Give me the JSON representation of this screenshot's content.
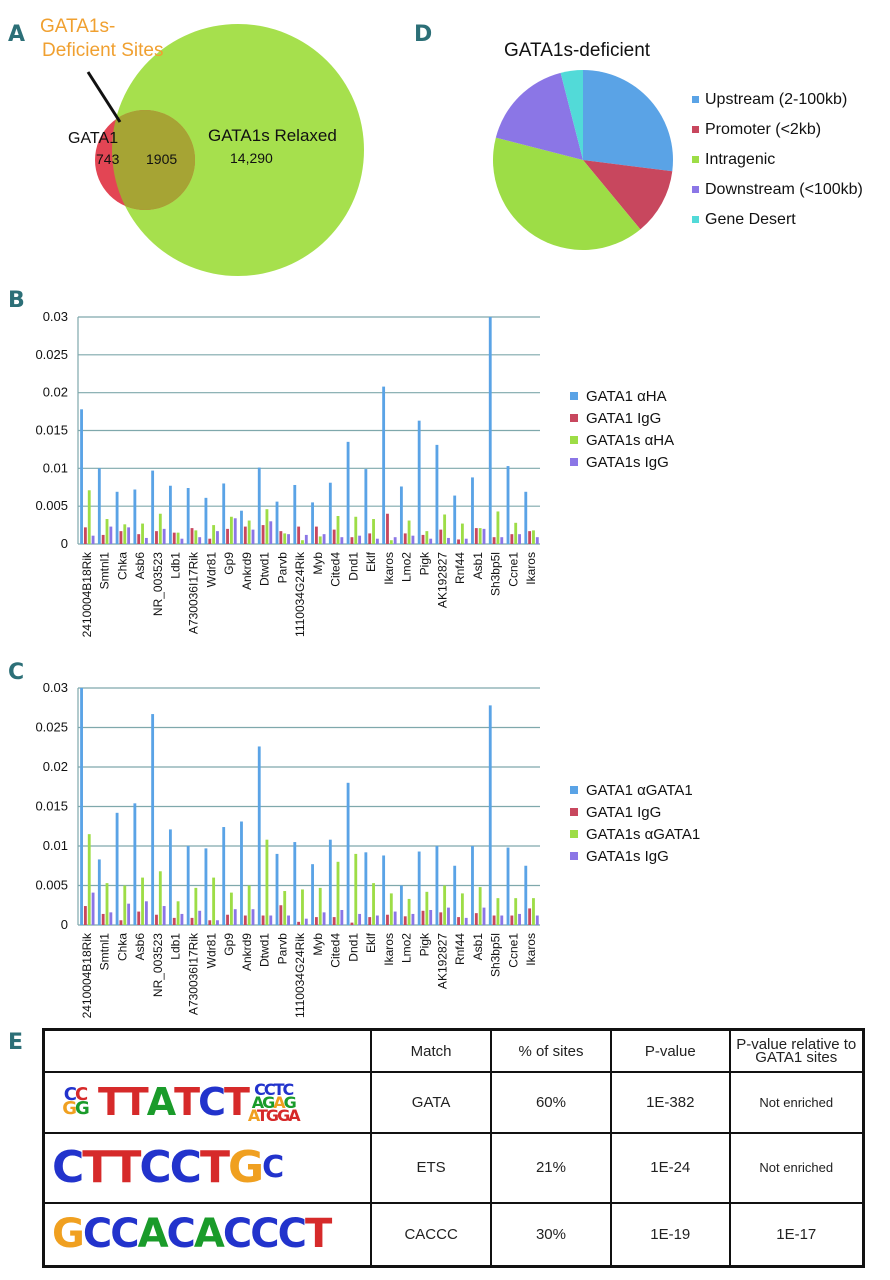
{
  "panels": {
    "A": "A",
    "B": "B",
    "C": "C",
    "D": "D",
    "E": "E"
  },
  "venn": {
    "callout": [
      "GATA1s-",
      "Deficient Sites"
    ],
    "left_label": "GATA1",
    "left_count": "743",
    "overlap_count": "1905",
    "right_label": "GATA1s Relaxed",
    "right_count": "14,290",
    "colors": {
      "left": "#e34554",
      "right": "#a6e04d",
      "overlap": "#a6a434",
      "callout": "#f0a030"
    }
  },
  "pie": {
    "title": "GATA1s-deficient",
    "slices": [
      {
        "label": "Upstream (2-100kb)",
        "value": 27,
        "color": "#5aa3e6"
      },
      {
        "label": "Promoter (<2kb)",
        "value": 12,
        "color": "#c8475e"
      },
      {
        "label": "Intragenic",
        "value": 40,
        "color": "#9ddd46"
      },
      {
        "label": "Downstream (<100kb)",
        "value": 17,
        "color": "#8b76e6"
      },
      {
        "label": "Gene Desert",
        "value": 4,
        "color": "#52dad8"
      }
    ]
  },
  "chart_data": [
    {
      "type": "bar",
      "title": "",
      "xlabel": "",
      "ylabel": "",
      "ylim": [
        0,
        0.03
      ],
      "yticks": [
        "0",
        "0.005",
        "0.01",
        "0.015",
        "0.02",
        "0.025",
        "0.03"
      ],
      "categories": [
        "2410004B18Rik",
        "Smtnl1",
        "Chka",
        "Asb6",
        "NR_003523",
        "Ldb1",
        "A730036I17Rik",
        "Wdr81",
        "Gp9",
        "Ankrd9",
        "Dtwd1",
        "Parvb",
        "1110034G24Rik",
        "Myb",
        "Cited4",
        "Dnd1",
        "Eklf",
        "Ikaros",
        "Lmo2",
        "Pigk",
        "AK192827",
        "Rnf44",
        "Asb1",
        "Sh3bp5l",
        "Ccne1",
        "Ikaros"
      ],
      "series": [
        {
          "name": "GATA1 αHA",
          "color": "#5aa3e6",
          "values": [
            0.0178,
            0.01,
            0.0069,
            0.0072,
            0.0097,
            0.0077,
            0.0074,
            0.0061,
            0.008,
            0.0044,
            0.0101,
            0.0056,
            0.0078,
            0.0055,
            0.0081,
            0.0135,
            0.0099,
            0.0208,
            0.0076,
            0.0163,
            0.0131,
            0.0064,
            0.0088,
            0.03,
            0.0103,
            0.0069
          ]
        },
        {
          "name": "GATA1 IgG",
          "color": "#c8475e",
          "values": [
            0.0022,
            0.0012,
            0.0017,
            0.0013,
            0.0017,
            0.0015,
            0.0021,
            0.0007,
            0.002,
            0.0023,
            0.0025,
            0.0017,
            0.0023,
            0.0023,
            0.0019,
            0.0009,
            0.0014,
            0.004,
            0.0014,
            0.0012,
            0.0019,
            0.0006,
            0.0021,
            0.0009,
            0.0013,
            0.0017
          ]
        },
        {
          "name": "GATA1s αHA",
          "color": "#9ddd46",
          "values": [
            0.0071,
            0.0033,
            0.0026,
            0.0027,
            0.004,
            0.0015,
            0.0018,
            0.0025,
            0.0036,
            0.0031,
            0.0046,
            0.0014,
            0.0005,
            0.001,
            0.0037,
            0.0036,
            0.0033,
            0.0005,
            0.0031,
            0.0017,
            0.0039,
            0.0027,
            0.0021,
            0.0043,
            0.0028,
            0.0018
          ]
        },
        {
          "name": "GATA1s IgG",
          "color": "#8b76e6",
          "values": [
            0.0011,
            0.0023,
            0.0022,
            0.0008,
            0.002,
            0.0007,
            0.0009,
            0.0017,
            0.0034,
            0.0019,
            0.003,
            0.0013,
            0.0012,
            0.0013,
            0.0009,
            0.0011,
            0.0007,
            0.0009,
            0.0011,
            0.0007,
            0.0008,
            0.0007,
            0.002,
            0.0009,
            0.0013,
            0.0009
          ]
        }
      ]
    },
    {
      "type": "bar",
      "title": "",
      "xlabel": "",
      "ylabel": "",
      "ylim": [
        0,
        0.03
      ],
      "yticks": [
        "0",
        "0.005",
        "0.01",
        "0.015",
        "0.02",
        "0.025",
        "0.03"
      ],
      "categories": [
        "2410004B18Rik",
        "Smtnl1",
        "Chka",
        "Asb6",
        "NR_003523",
        "Ldb1",
        "A730036I17Rik",
        "Wdr81",
        "Gp9",
        "Ankrd9",
        "Dtwd1",
        "Parvb",
        "1110034G24Rik",
        "Myb",
        "Cited4",
        "Dnd1",
        "Eklf",
        "Ikaros",
        "Lmo2",
        "Pigk",
        "AK192827",
        "Rnf44",
        "Asb1",
        "Sh3bp5l",
        "Ccne1",
        "Ikaros"
      ],
      "series": [
        {
          "name": "GATA1   αGATA1",
          "color": "#5aa3e6",
          "values": [
            0.03,
            0.0083,
            0.0142,
            0.0154,
            0.0267,
            0.0121,
            0.01,
            0.0097,
            0.0124,
            0.0131,
            0.0226,
            0.009,
            0.0105,
            0.0077,
            0.0108,
            0.018,
            0.0092,
            0.0088,
            0.005,
            0.0093,
            0.01,
            0.0075,
            0.01,
            0.0278,
            0.0098,
            0.0075
          ]
        },
        {
          "name": "GATA1   IgG",
          "color": "#c8475e",
          "values": [
            0.0024,
            0.0014,
            0.0006,
            0.0017,
            0.0013,
            0.0009,
            0.0009,
            0.0006,
            0.0013,
            0.0012,
            0.0012,
            0.0025,
            0.0004,
            0.001,
            0.001,
            0.0003,
            0.001,
            0.0013,
            0.0011,
            0.0018,
            0.0016,
            0.001,
            0.0015,
            0.0012,
            0.0012,
            0.0021
          ]
        },
        {
          "name": "GATA1s  αGATA1",
          "color": "#9ddd46",
          "values": [
            0.0115,
            0.0053,
            0.005,
            0.006,
            0.0068,
            0.003,
            0.0047,
            0.006,
            0.0041,
            0.005,
            0.0108,
            0.0043,
            0.0045,
            0.0047,
            0.008,
            0.009,
            0.0053,
            0.004,
            0.0033,
            0.0042,
            0.005,
            0.004,
            0.0048,
            0.0034,
            0.0034,
            0.0034
          ]
        },
        {
          "name": "GATA1s  IgG",
          "color": "#8b76e6",
          "values": [
            0.0041,
            0.0016,
            0.0027,
            0.003,
            0.0024,
            0.0014,
            0.0018,
            0.0006,
            0.002,
            0.002,
            0.0012,
            0.0012,
            0.0008,
            0.0016,
            0.0019,
            0.0014,
            0.0012,
            0.0017,
            0.0014,
            0.0019,
            0.0022,
            0.0009,
            0.0022,
            0.0012,
            0.0014,
            0.0012
          ]
        }
      ]
    }
  ],
  "table": {
    "headers": [
      "",
      "Match",
      "% of sites",
      "P-value",
      "P-value relative to GATA1 sites"
    ],
    "rows": [
      {
        "logo": "CCTTATCTCCTC",
        "match": "GATA",
        "percent": "60%",
        "pvalue": "1E-382",
        "relative": "Not enriched"
      },
      {
        "logo": "CTTCCTGC",
        "match": "ETS",
        "percent": "21%",
        "pvalue": "1E-24",
        "relative": "Not enriched"
      },
      {
        "logo": "GCCACACCCT",
        "match": "CACCC",
        "percent": "30%",
        "pvalue": "1E-19",
        "relative": "1E-17"
      }
    ]
  }
}
